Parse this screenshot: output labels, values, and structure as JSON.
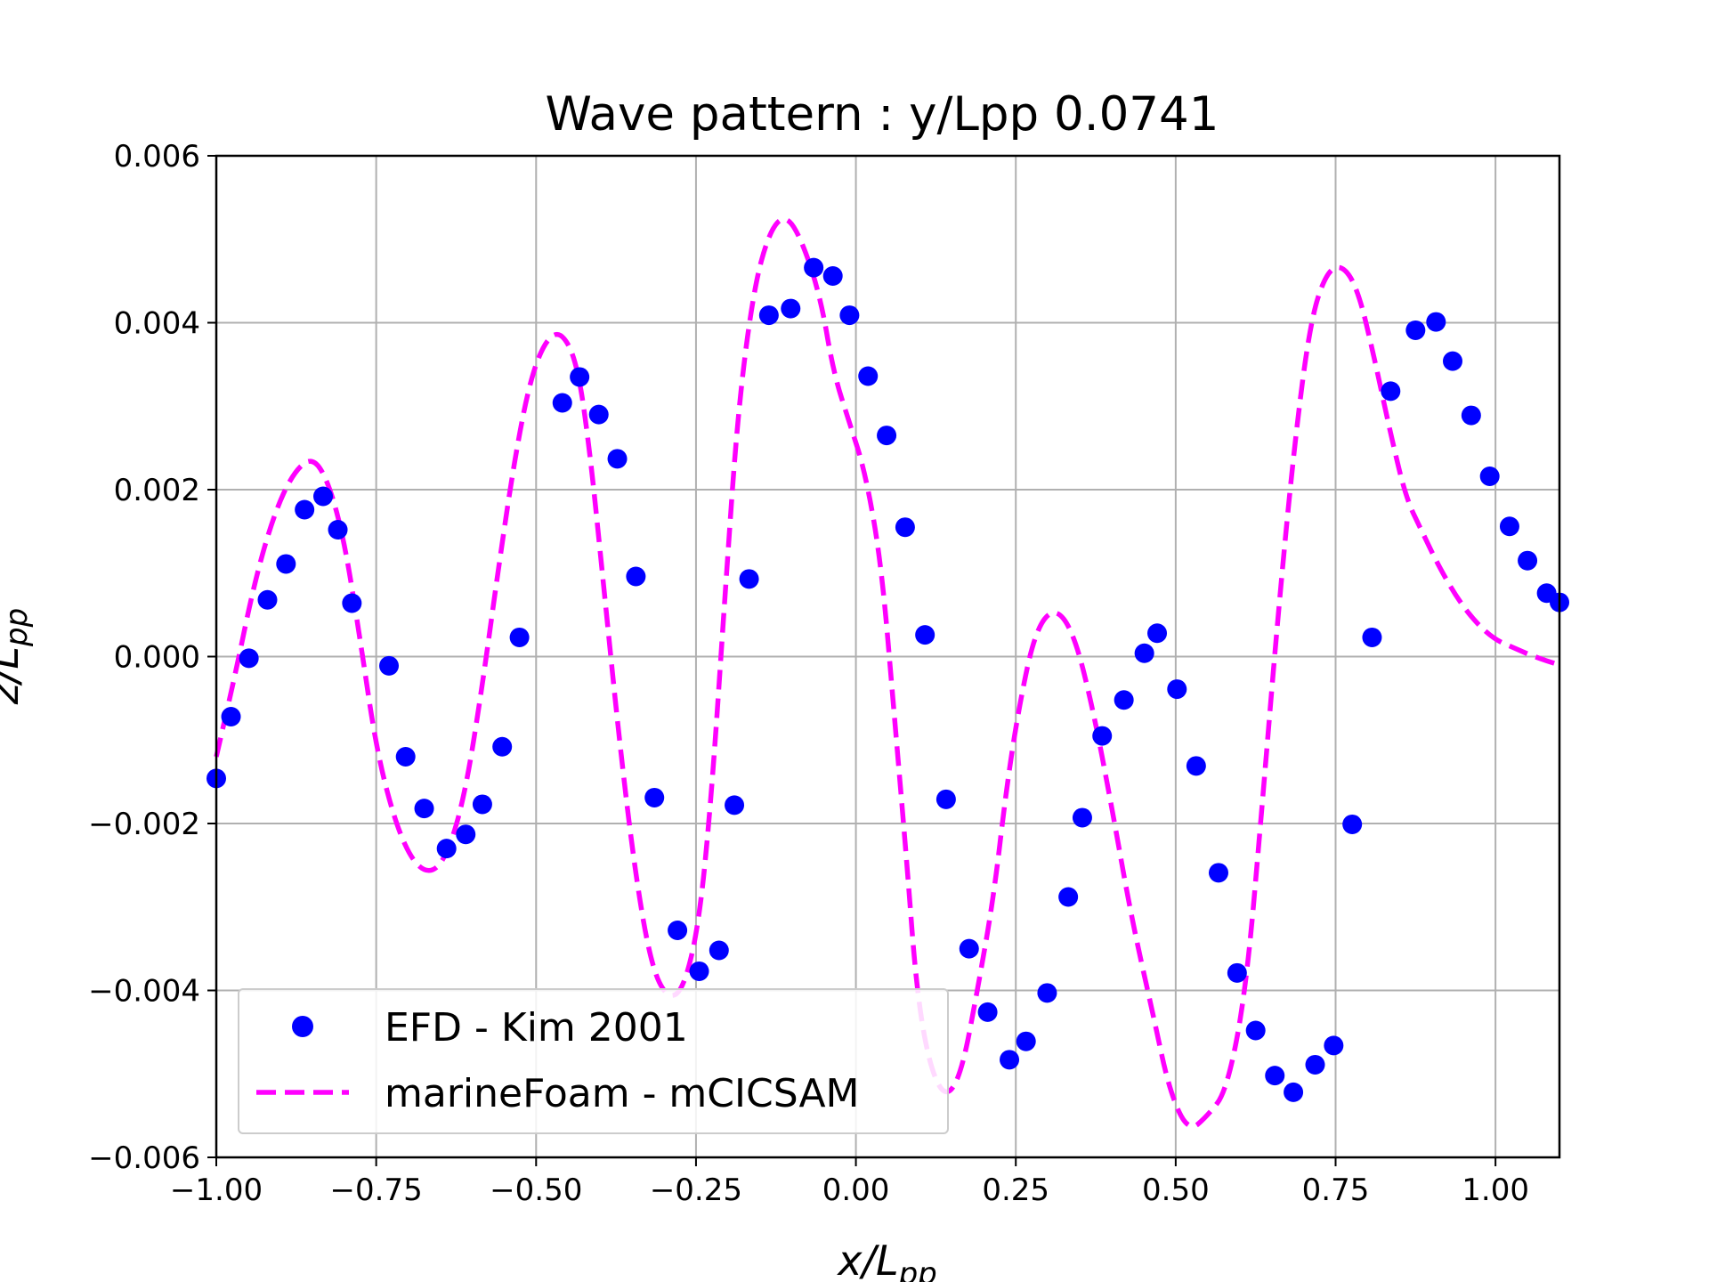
{
  "chart_data": {
    "type": "line",
    "title": "Wave pattern : y/Lpp 0.0741",
    "xlabel": {
      "main": "x/L",
      "sub": "pp"
    },
    "ylabel": {
      "main": "z/L",
      "sub": "pp"
    },
    "xlim": [
      -1.0,
      1.1
    ],
    "ylim": [
      -0.006,
      0.006
    ],
    "x_ticks": [
      -1.0,
      -0.75,
      -0.5,
      -0.25,
      0.0,
      0.25,
      0.5,
      0.75,
      1.0
    ],
    "x_tick_labels": [
      "−1.00",
      "−0.75",
      "−0.50",
      "−0.25",
      "0.00",
      "0.25",
      "0.50",
      "0.75",
      "1.00"
    ],
    "y_ticks": [
      -0.006,
      -0.004,
      -0.002,
      0.0,
      0.002,
      0.004,
      0.006
    ],
    "y_tick_labels": [
      "−0.006",
      "−0.004",
      "−0.002",
      "0.000",
      "0.002",
      "0.004",
      "0.006"
    ],
    "grid": true,
    "legend_position": "lower-left",
    "series": [
      {
        "name": "EFD - Kim 2001",
        "style": "markers",
        "color": "#0000ff",
        "x": [
          -1.0,
          -0.977,
          -0.949,
          -0.92,
          -0.891,
          -0.862,
          -0.833,
          -0.81,
          -0.788,
          -0.73,
          -0.704,
          -0.675,
          -0.64,
          -0.61,
          -0.584,
          -0.553,
          -0.526,
          -0.459,
          -0.432,
          -0.402,
          -0.373,
          -0.344,
          -0.315,
          -0.279,
          -0.245,
          -0.214,
          -0.19,
          -0.167,
          -0.136,
          -0.102,
          -0.066,
          -0.036,
          -0.01,
          0.019,
          0.048,
          0.077,
          0.108,
          0.141,
          0.177,
          0.206,
          0.24,
          0.266,
          0.299,
          0.332,
          0.354,
          0.385,
          0.419,
          0.451,
          0.471,
          0.502,
          0.532,
          0.567,
          0.596,
          0.625,
          0.655,
          0.684,
          0.718,
          0.747,
          0.776,
          0.807,
          0.836,
          0.875,
          0.907,
          0.933,
          0.962,
          0.991,
          1.022,
          1.05,
          1.08,
          1.1
        ],
        "y": [
          -0.00146,
          -0.00072,
          -2e-05,
          0.00068,
          0.00111,
          0.00176,
          0.00192,
          0.00152,
          0.00064,
          -0.00011,
          -0.0012,
          -0.00182,
          -0.0023,
          -0.00213,
          -0.00177,
          -0.00108,
          0.00023,
          0.00304,
          0.00335,
          0.0029,
          0.00237,
          0.00096,
          -0.00169,
          -0.00328,
          -0.00377,
          -0.00352,
          -0.00178,
          0.00093,
          0.00409,
          0.00417,
          0.00466,
          0.00456,
          0.00409,
          0.00336,
          0.00265,
          0.00155,
          0.00026,
          -0.00171,
          -0.0035,
          -0.00426,
          -0.00483,
          -0.00461,
          -0.00403,
          -0.00288,
          -0.00193,
          -0.00095,
          -0.00052,
          4e-05,
          0.00028,
          -0.00039,
          -0.00131,
          -0.00259,
          -0.00379,
          -0.00448,
          -0.00502,
          -0.00522,
          -0.00489,
          -0.00466,
          -0.00201,
          0.00023,
          0.00318,
          0.00391,
          0.00401,
          0.00354,
          0.00289,
          0.00216,
          0.00156,
          0.00115,
          0.00076,
          0.00065
        ]
      },
      {
        "name": "marineFoam - mCICSAM",
        "style": "dashed",
        "color": "#ff00ff",
        "x": [
          -1.0,
          -0.97,
          -0.94,
          -0.91,
          -0.88,
          -0.85,
          -0.825,
          -0.8,
          -0.775,
          -0.75,
          -0.72,
          -0.69,
          -0.66,
          -0.635,
          -0.61,
          -0.585,
          -0.56,
          -0.535,
          -0.51,
          -0.485,
          -0.46,
          -0.435,
          -0.415,
          -0.395,
          -0.37,
          -0.345,
          -0.32,
          -0.295,
          -0.27,
          -0.245,
          -0.225,
          -0.205,
          -0.185,
          -0.16,
          -0.135,
          -0.11,
          -0.085,
          -0.055,
          -0.035,
          -0.01,
          0.015,
          0.04,
          0.06,
          0.08,
          0.095,
          0.115,
          0.14,
          0.165,
          0.19,
          0.215,
          0.235,
          0.255,
          0.28,
          0.31,
          0.34,
          0.37,
          0.4,
          0.43,
          0.465,
          0.49,
          0.52,
          0.55,
          0.58,
          0.61,
          0.635,
          0.66,
          0.685,
          0.71,
          0.735,
          0.76,
          0.785,
          0.81,
          0.835,
          0.86,
          0.885,
          0.91,
          0.94,
          0.97,
          1.0,
          1.03,
          1.06,
          1.1
        ],
        "y": [
          -0.0012,
          -0.0002,
          0.0009,
          0.0017,
          0.0022,
          0.0024,
          0.0021,
          0.0014,
          0.0002,
          -0.0011,
          -0.002,
          -0.0025,
          -0.0026,
          -0.0023,
          -0.0016,
          -0.0004,
          0.001,
          0.0023,
          0.0033,
          0.0038,
          0.0039,
          0.0035,
          0.0024,
          0.0009,
          -0.001,
          -0.0026,
          -0.0037,
          -0.0041,
          -0.004,
          -0.0032,
          -0.0016,
          0.0007,
          0.0029,
          0.0044,
          0.0051,
          0.0053,
          0.005,
          0.0043,
          0.0034,
          0.0028,
          0.0022,
          0.0011,
          -0.0007,
          -0.0025,
          -0.004,
          -0.0049,
          -0.0053,
          -0.005,
          -0.004,
          -0.0029,
          -0.0016,
          -0.0006,
          0.0003,
          0.0006,
          0.0003,
          -0.0006,
          -0.0018,
          -0.0031,
          -0.0043,
          -0.0052,
          -0.0057,
          -0.0055,
          -0.0052,
          -0.004,
          -0.0018,
          0.0005,
          0.0025,
          0.004,
          0.0046,
          0.0047,
          0.0044,
          0.0036,
          0.0027,
          0.0019,
          0.0015,
          0.0011,
          0.0007,
          0.0004,
          0.0002,
          0.0001,
          0.0,
          -0.0001
        ]
      }
    ]
  }
}
